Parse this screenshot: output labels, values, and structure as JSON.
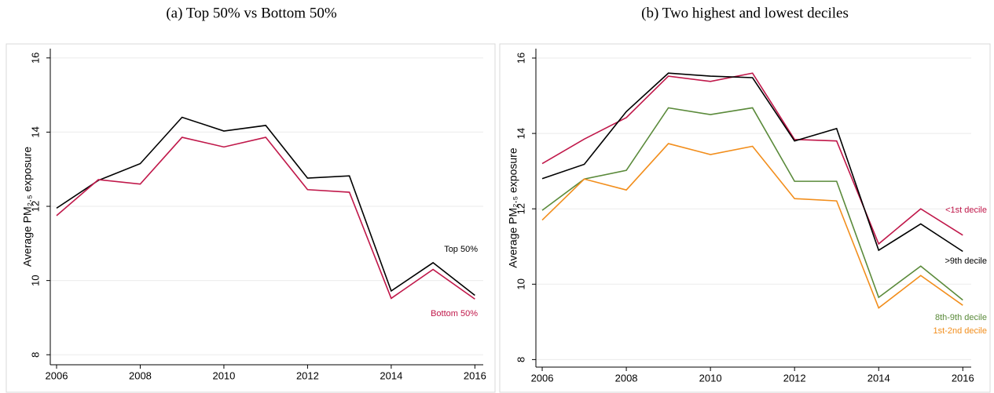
{
  "chart_data": [
    {
      "type": "line",
      "title": "(a) Top 50% vs Bottom 50%",
      "ylabel": "Average PM₂.₅ exposure",
      "x": [
        2006,
        2007,
        2008,
        2009,
        2010,
        2011,
        2012,
        2013,
        2014,
        2015,
        2016
      ],
      "series": [
        {
          "name": "Top 50%",
          "color": "#000000",
          "values": [
            11.95,
            12.7,
            13.15,
            14.4,
            14.03,
            14.18,
            12.76,
            12.82,
            9.72,
            10.48,
            9.6
          ]
        },
        {
          "name": "Bottom 50%",
          "color": "#c0184a",
          "values": [
            11.75,
            12.72,
            12.6,
            13.86,
            13.6,
            13.86,
            12.45,
            12.38,
            9.52,
            10.3,
            9.5
          ]
        }
      ],
      "xlim": [
        2005.85,
        2016.2
      ],
      "xticks": [
        2006,
        2008,
        2010,
        2012,
        2014,
        2016
      ],
      "ylim": [
        7.73,
        16.25
      ],
      "yticks": [
        8,
        10,
        12,
        14,
        16
      ],
      "grid": true
    },
    {
      "type": "line",
      "title": "(b) Two highest and lowest deciles",
      "ylabel": "Average PM₂.₅ exposure",
      "x": [
        2006,
        2007,
        2008,
        2009,
        2010,
        2011,
        2012,
        2013,
        2014,
        2015,
        2016
      ],
      "series": [
        {
          "name": "<1st decile",
          "color": "#c0184a",
          "values": [
            13.2,
            13.85,
            14.42,
            15.52,
            15.38,
            15.6,
            13.84,
            13.8,
            11.07,
            12.0,
            11.3
          ]
        },
        {
          "name": ">9th decile",
          "color": "#000000",
          "values": [
            12.8,
            13.18,
            14.58,
            15.6,
            15.52,
            15.48,
            13.8,
            14.13,
            10.9,
            11.6,
            10.87
          ]
        },
        {
          "name": "8th-9th decile",
          "color": "#5a8a3a",
          "values": [
            11.96,
            12.79,
            13.02,
            14.68,
            14.5,
            14.68,
            12.73,
            12.73,
            9.65,
            10.48,
            9.58
          ]
        },
        {
          "name": "1st-2nd decile",
          "color": "#f28e1c",
          "values": [
            11.7,
            12.79,
            12.5,
            13.73,
            13.44,
            13.66,
            12.27,
            12.21,
            9.37,
            10.23,
            9.44
          ]
        }
      ],
      "xlim": [
        2005.85,
        2016.2
      ],
      "xticks": [
        2006,
        2008,
        2010,
        2012,
        2014,
        2016
      ],
      "ylim": [
        7.8,
        16.25
      ],
      "yticks": [
        8,
        10,
        12,
        14,
        16
      ],
      "grid": true
    }
  ]
}
